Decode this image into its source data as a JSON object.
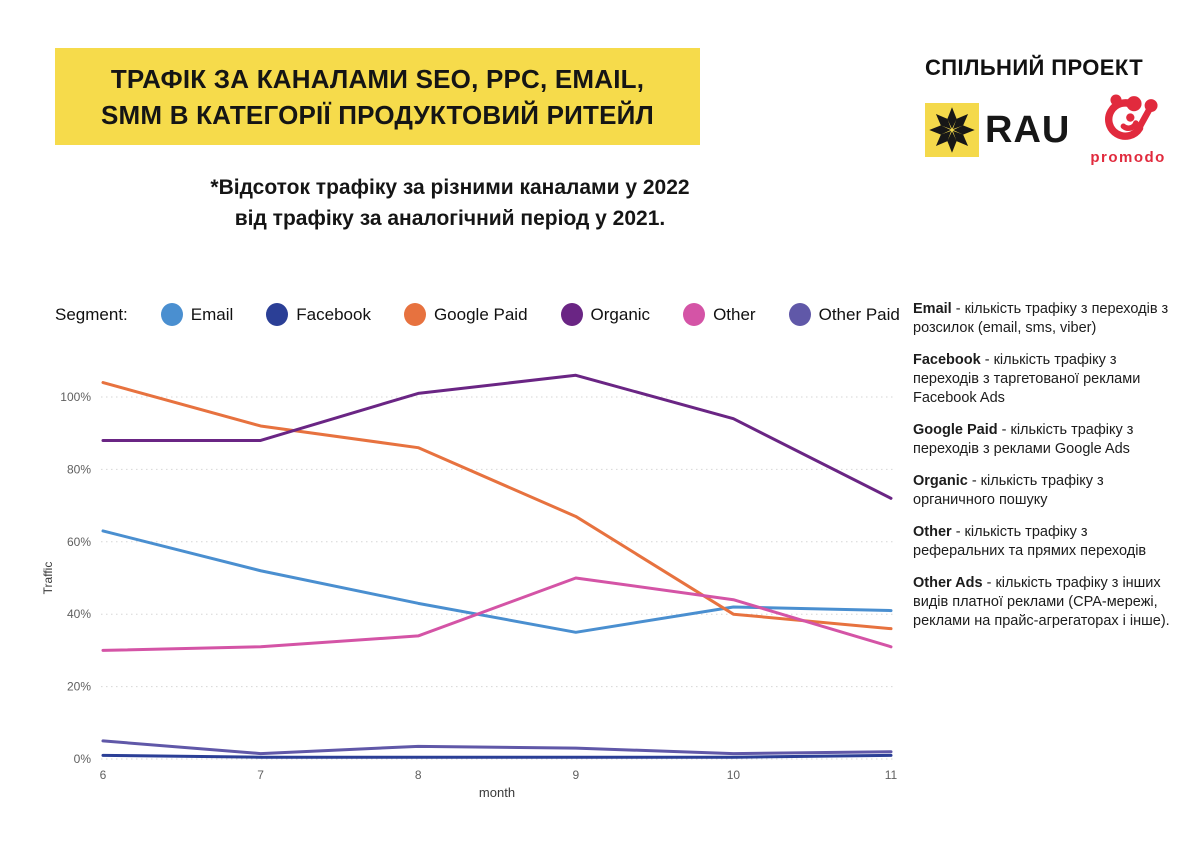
{
  "header": {
    "title_line1": "ТРАФІК ЗА КАНАЛАМИ SEO, PPC, EMAIL,",
    "title_line2": "SMM В КАТЕГОРІЇ ПРОДУКТОВИЙ РИТЕЙЛ",
    "banner_color": "#F6DB4B",
    "partner_label": "СПІЛЬНИЙ ПРОЕКТ",
    "rau_logo_text": "RAU",
    "promodo_logo_text": "promodo",
    "promodo_color": "#E12A3D"
  },
  "subtitle": {
    "line1": "*Відсоток трафіку за різними каналами у 2022",
    "line2": "від трафіку за аналогічний період у 2021."
  },
  "legend": {
    "label": "Segment:",
    "items": [
      {
        "label": "Email",
        "color": "#4A8FD0"
      },
      {
        "label": "Facebook",
        "color": "#2B3F96"
      },
      {
        "label": "Google Paid",
        "color": "#E7723F"
      },
      {
        "label": "Organic",
        "color": "#6A2584"
      },
      {
        "label": "Other",
        "color": "#D454A6"
      },
      {
        "label": "Other Paid",
        "color": "#6058A8"
      }
    ]
  },
  "chart_data": {
    "type": "line",
    "x": [
      6,
      7,
      8,
      9,
      10,
      11
    ],
    "xlabel": "month",
    "ylabel": "Traffic",
    "ylim": [
      0,
      112
    ],
    "yticks": [
      0,
      20,
      40,
      60,
      80,
      100
    ],
    "ytick_suffix": "%",
    "grid": "horizontal-dotted",
    "legend_position": "top",
    "series": [
      {
        "name": "Email",
        "color": "#4A8FD0",
        "values": [
          63,
          52,
          43,
          35,
          42,
          41
        ]
      },
      {
        "name": "Facebook",
        "color": "#2B3F96",
        "values": [
          1,
          0.5,
          0.5,
          0.5,
          0.5,
          1
        ]
      },
      {
        "name": "Google Paid",
        "color": "#E7723F",
        "values": [
          104,
          92,
          86,
          67,
          40,
          36
        ]
      },
      {
        "name": "Organic",
        "color": "#6A2584",
        "values": [
          88,
          88,
          101,
          106,
          94,
          72
        ]
      },
      {
        "name": "Other",
        "color": "#D454A6",
        "values": [
          30,
          31,
          34,
          50,
          44,
          31
        ]
      },
      {
        "name": "Other Paid",
        "color": "#6058A8",
        "values": [
          5,
          1.5,
          3.5,
          3,
          1.5,
          2
        ]
      }
    ]
  },
  "definitions": [
    {
      "term": "Email",
      "text": "- кількість трафіку з переходів з розсилок (email, sms, viber)"
    },
    {
      "term": "Facebook",
      "text": "- кількість трафіку з переходів з таргетованої реклами Facebook Ads"
    },
    {
      "term": "Google Paid",
      "text": "- кількість трафіку з переходів з реклами Google Ads"
    },
    {
      "term": "Organic",
      "text": "-  кількість трафіку з органичного пошуку"
    },
    {
      "term": "Other",
      "text": "-  кількість трафіку з реферальних та прямих переходів"
    },
    {
      "term": "Other Ads",
      "text": "-  кількість трафіку з інших видів платної реклами (CPA-мережі, реклами на прайс-агрегаторах і інше)."
    }
  ]
}
